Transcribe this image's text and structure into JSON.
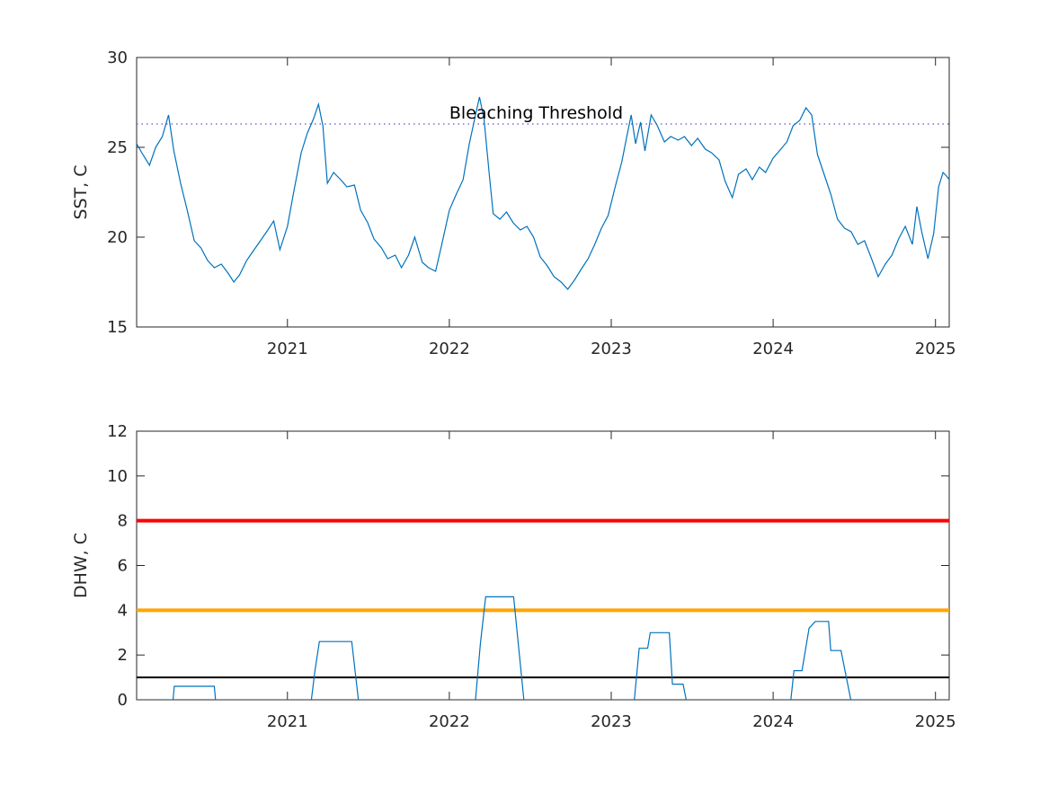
{
  "chart_data": [
    {
      "type": "line",
      "ylabel": "SST, C",
      "xlabel": "",
      "x_range": [
        "2020-01-27",
        "2025-02-01"
      ],
      "ylim": [
        15,
        30
      ],
      "yticks": [
        15,
        20,
        25,
        30
      ],
      "xticks": [
        {
          "date": "2021-01-01",
          "label": "2021"
        },
        {
          "date": "2022-01-01",
          "label": "2022"
        },
        {
          "date": "2023-01-01",
          "label": "2023"
        },
        {
          "date": "2024-01-01",
          "label": "2024"
        },
        {
          "date": "2025-01-01",
          "label": "2025"
        }
      ],
      "grid": false,
      "line_color": "#0072BD",
      "threshold": {
        "value": 26.3,
        "color": "#7E6BE0",
        "style": "dotted",
        "label": "Bleaching Threshold"
      },
      "series": [
        {
          "points": [
            [
              "2020-01-27",
              25.2
            ],
            [
              "2020-02-10",
              24.6
            ],
            [
              "2020-02-25",
              24.0
            ],
            [
              "2020-03-10",
              25.0
            ],
            [
              "2020-03-25",
              25.6
            ],
            [
              "2020-04-08",
              26.8
            ],
            [
              "2020-04-20",
              24.8
            ],
            [
              "2020-05-05",
              23.0
            ],
            [
              "2020-05-20",
              21.5
            ],
            [
              "2020-06-05",
              19.8
            ],
            [
              "2020-06-20",
              19.4
            ],
            [
              "2020-07-05",
              18.7
            ],
            [
              "2020-07-20",
              18.3
            ],
            [
              "2020-08-05",
              18.5
            ],
            [
              "2020-08-20",
              18.0
            ],
            [
              "2020-09-02",
              17.5
            ],
            [
              "2020-09-15",
              17.9
            ],
            [
              "2020-10-01",
              18.7
            ],
            [
              "2020-10-15",
              19.2
            ],
            [
              "2020-11-01",
              19.8
            ],
            [
              "2020-11-15",
              20.3
            ],
            [
              "2020-12-01",
              20.9
            ],
            [
              "2020-12-15",
              19.3
            ],
            [
              "2021-01-01",
              20.6
            ],
            [
              "2021-01-15",
              22.5
            ],
            [
              "2021-02-01",
              24.7
            ],
            [
              "2021-02-15",
              25.8
            ],
            [
              "2021-03-01",
              26.6
            ],
            [
              "2021-03-12",
              27.4
            ],
            [
              "2021-03-22",
              26.2
            ],
            [
              "2021-04-01",
              23.0
            ],
            [
              "2021-04-15",
              23.6
            ],
            [
              "2021-05-01",
              23.2
            ],
            [
              "2021-05-15",
              22.8
            ],
            [
              "2021-06-01",
              22.9
            ],
            [
              "2021-06-15",
              21.5
            ],
            [
              "2021-07-01",
              20.8
            ],
            [
              "2021-07-15",
              19.9
            ],
            [
              "2021-08-01",
              19.4
            ],
            [
              "2021-08-15",
              18.8
            ],
            [
              "2021-09-01",
              19.0
            ],
            [
              "2021-09-15",
              18.3
            ],
            [
              "2021-10-01",
              19.0
            ],
            [
              "2021-10-15",
              20.0
            ],
            [
              "2021-11-01",
              18.6
            ],
            [
              "2021-11-15",
              18.3
            ],
            [
              "2021-12-01",
              18.1
            ],
            [
              "2021-12-15",
              19.6
            ],
            [
              "2022-01-01",
              21.5
            ],
            [
              "2022-01-15",
              22.3
            ],
            [
              "2022-02-01",
              23.2
            ],
            [
              "2022-02-15",
              25.2
            ],
            [
              "2022-03-01",
              26.8
            ],
            [
              "2022-03-10",
              27.8
            ],
            [
              "2022-03-20",
              26.6
            ],
            [
              "2022-04-01",
              23.5
            ],
            [
              "2022-04-10",
              21.3
            ],
            [
              "2022-04-25",
              21.0
            ],
            [
              "2022-05-10",
              21.4
            ],
            [
              "2022-05-25",
              20.8
            ],
            [
              "2022-06-10",
              20.4
            ],
            [
              "2022-06-25",
              20.6
            ],
            [
              "2022-07-10",
              20.0
            ],
            [
              "2022-07-25",
              18.9
            ],
            [
              "2022-08-10",
              18.4
            ],
            [
              "2022-08-25",
              17.8
            ],
            [
              "2022-09-10",
              17.5
            ],
            [
              "2022-09-25",
              17.1
            ],
            [
              "2022-10-10",
              17.6
            ],
            [
              "2022-10-25",
              18.2
            ],
            [
              "2022-11-10",
              18.8
            ],
            [
              "2022-11-25",
              19.6
            ],
            [
              "2022-12-10",
              20.5
            ],
            [
              "2022-12-25",
              21.2
            ],
            [
              "2023-01-10",
              22.8
            ],
            [
              "2023-01-25",
              24.2
            ],
            [
              "2023-02-05",
              25.6
            ],
            [
              "2023-02-15",
              26.8
            ],
            [
              "2023-02-25",
              25.2
            ],
            [
              "2023-03-08",
              26.4
            ],
            [
              "2023-03-18",
              24.8
            ],
            [
              "2023-04-01",
              26.8
            ],
            [
              "2023-04-15",
              26.2
            ],
            [
              "2023-05-01",
              25.3
            ],
            [
              "2023-05-15",
              25.6
            ],
            [
              "2023-06-01",
              25.4
            ],
            [
              "2023-06-15",
              25.6
            ],
            [
              "2023-07-01",
              25.1
            ],
            [
              "2023-07-15",
              25.5
            ],
            [
              "2023-08-01",
              24.9
            ],
            [
              "2023-08-15",
              24.7
            ],
            [
              "2023-09-01",
              24.3
            ],
            [
              "2023-09-15",
              23.1
            ],
            [
              "2023-10-01",
              22.2
            ],
            [
              "2023-10-15",
              23.5
            ],
            [
              "2023-11-01",
              23.8
            ],
            [
              "2023-11-15",
              23.2
            ],
            [
              "2023-12-01",
              23.9
            ],
            [
              "2023-12-15",
              23.6
            ],
            [
              "2024-01-01",
              24.4
            ],
            [
              "2024-01-15",
              24.8
            ],
            [
              "2024-02-01",
              25.3
            ],
            [
              "2024-02-15",
              26.2
            ],
            [
              "2024-03-01",
              26.5
            ],
            [
              "2024-03-15",
              27.2
            ],
            [
              "2024-03-28",
              26.8
            ],
            [
              "2024-04-10",
              24.6
            ],
            [
              "2024-04-25",
              23.5
            ],
            [
              "2024-05-10",
              22.4
            ],
            [
              "2024-05-25",
              21.0
            ],
            [
              "2024-06-10",
              20.5
            ],
            [
              "2024-06-25",
              20.3
            ],
            [
              "2024-07-10",
              19.6
            ],
            [
              "2024-07-25",
              19.8
            ],
            [
              "2024-08-10",
              18.8
            ],
            [
              "2024-08-25",
              17.8
            ],
            [
              "2024-09-10",
              18.5
            ],
            [
              "2024-09-25",
              19.0
            ],
            [
              "2024-10-10",
              19.9
            ],
            [
              "2024-10-25",
              20.6
            ],
            [
              "2024-11-10",
              19.6
            ],
            [
              "2024-11-20",
              21.7
            ],
            [
              "2024-12-01",
              20.3
            ],
            [
              "2024-12-15",
              18.8
            ],
            [
              "2024-12-28",
              20.2
            ],
            [
              "2025-01-08",
              22.8
            ],
            [
              "2025-01-18",
              23.6
            ],
            [
              "2025-01-26",
              23.4
            ],
            [
              "2025-02-01",
              23.2
            ]
          ]
        }
      ]
    },
    {
      "type": "line",
      "ylabel": "DHW, C",
      "xlabel": "",
      "x_range": [
        "2020-01-27",
        "2025-02-01"
      ],
      "ylim": [
        0,
        12
      ],
      "yticks": [
        0,
        2,
        4,
        6,
        8,
        10,
        12
      ],
      "xticks": [
        {
          "date": "2021-01-01",
          "label": "2021"
        },
        {
          "date": "2022-01-01",
          "label": "2022"
        },
        {
          "date": "2023-01-01",
          "label": "2023"
        },
        {
          "date": "2024-01-01",
          "label": "2024"
        },
        {
          "date": "2025-01-01",
          "label": "2025"
        }
      ],
      "grid": false,
      "line_color": "#0072BD",
      "reference_lines": [
        {
          "value": 8,
          "color": "#FF0000"
        },
        {
          "value": 4,
          "color": "#FFA500"
        },
        {
          "value": 1,
          "color": "#000000"
        }
      ],
      "series": [
        {
          "points": [
            [
              "2020-01-27",
              0
            ],
            [
              "2020-04-18",
              0
            ],
            [
              "2020-04-21",
              0.6
            ],
            [
              "2020-07-20",
              0.6
            ],
            [
              "2020-07-23",
              0
            ],
            [
              "2021-02-24",
              0
            ],
            [
              "2021-03-04",
              1.3
            ],
            [
              "2021-03-14",
              2.6
            ],
            [
              "2021-05-26",
              2.6
            ],
            [
              "2021-06-10",
              0
            ],
            [
              "2022-03-01",
              0
            ],
            [
              "2022-03-12",
              2.5
            ],
            [
              "2022-03-24",
              4.6
            ],
            [
              "2022-05-26",
              4.6
            ],
            [
              "2022-06-18",
              0
            ],
            [
              "2023-02-22",
              0
            ],
            [
              "2023-03-05",
              2.3
            ],
            [
              "2023-03-24",
              2.3
            ],
            [
              "2023-03-30",
              3.0
            ],
            [
              "2023-05-12",
              3.0
            ],
            [
              "2023-05-19",
              0.7
            ],
            [
              "2023-06-12",
              0.7
            ],
            [
              "2023-06-19",
              0
            ],
            [
              "2024-02-10",
              0
            ],
            [
              "2024-02-17",
              1.3
            ],
            [
              "2024-03-06",
              1.3
            ],
            [
              "2024-03-22",
              3.2
            ],
            [
              "2024-04-05",
              3.5
            ],
            [
              "2024-05-05",
              3.5
            ],
            [
              "2024-05-10",
              2.2
            ],
            [
              "2024-06-02",
              2.2
            ],
            [
              "2024-06-24",
              0
            ],
            [
              "2025-02-01",
              0
            ]
          ]
        }
      ]
    }
  ]
}
